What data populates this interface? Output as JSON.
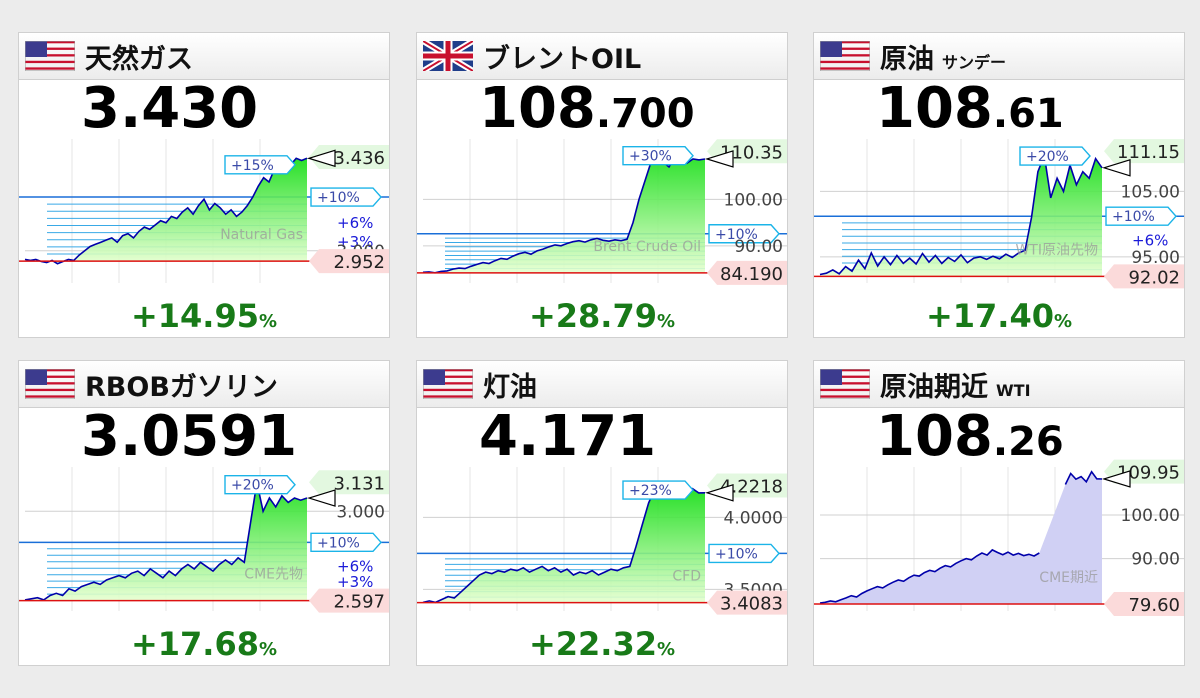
{
  "colors": {
    "rise_fill": "#22cc22",
    "price_line": "#0000aa",
    "percent_text": "#187a18",
    "level_label": "#e9f8e9",
    "low_label": "#fbdcdc"
  },
  "chart_data": [
    {
      "type": "area",
      "flag": "us",
      "title": "天然ガス",
      "subtitle": "",
      "price_int": "3.430",
      "price_dec": "",
      "change": "+14.95",
      "change_unit": "%",
      "watermark": "Natural Gas",
      "ylim": [
        2.85,
        3.52
      ],
      "high": 3.436,
      "high_label": "3.436",
      "low": 2.952,
      "low_label": "2.952",
      "axis_ticks": [
        {
          "v": 3.0,
          "label": "3.000"
        }
      ],
      "pct_marks": [
        {
          "v": 3.4,
          "label": "+15%",
          "style": "box"
        },
        {
          "v": 3.25,
          "label": "+10%",
          "style": "box"
        },
        {
          "v": 3.13,
          "label": "+6%",
          "style": "text"
        },
        {
          "v": 3.04,
          "label": "+3%",
          "style": "text"
        }
      ],
      "y": [
        2.96,
        2.955,
        2.96,
        2.95,
        2.945,
        2.955,
        2.94,
        2.95,
        2.96,
        2.955,
        2.98,
        3.0,
        3.02,
        3.03,
        3.04,
        3.05,
        3.06,
        3.04,
        3.07,
        3.08,
        3.06,
        3.09,
        3.11,
        3.1,
        3.12,
        3.14,
        3.13,
        3.16,
        3.15,
        3.18,
        3.2,
        3.17,
        3.21,
        3.24,
        3.19,
        3.22,
        3.2,
        3.17,
        3.19,
        3.16,
        3.18,
        3.21,
        3.25,
        3.3,
        3.34,
        3.32,
        3.38,
        3.36,
        3.41,
        3.4,
        3.43,
        3.42,
        3.43
      ]
    },
    {
      "type": "area",
      "flag": "uk",
      "title": "ブレントOIL",
      "subtitle": "",
      "price_int": "108",
      "price_dec": ".700",
      "change": "+28.79",
      "change_unit": "%",
      "watermark": "Brent Crude Oil",
      "ylim": [
        82,
        113
      ],
      "high": 110.35,
      "high_label": "110.35",
      "low": 84.19,
      "low_label": "84.190",
      "axis_ticks": [
        {
          "v": 100,
          "label": "100.00"
        },
        {
          "v": 90,
          "label": "90.00"
        }
      ],
      "pct_marks": [
        {
          "v": 109.4,
          "label": "+30%",
          "style": "box"
        },
        {
          "v": 92.6,
          "label": "+10%",
          "style": "box"
        }
      ],
      "y": [
        84.3,
        84.4,
        84.2,
        84.5,
        84.6,
        85.0,
        85.2,
        85.1,
        85.6,
        86.0,
        86.4,
        86.2,
        86.8,
        87.3,
        87.1,
        87.8,
        88.3,
        88.6,
        88.2,
        88.9,
        89.3,
        89.8,
        90.2,
        90.0,
        90.5,
        90.9,
        91.1,
        90.8,
        91.3,
        91.6,
        91.2,
        91.0,
        91.3,
        91.1,
        91.4,
        95,
        100,
        104,
        108,
        110.2,
        108,
        107,
        109,
        108.6,
        107.8,
        108.7,
        108.5,
        108.7
      ]
    },
    {
      "type": "area",
      "flag": "us",
      "title": "原油",
      "subtitle": "サンデー",
      "price_int": "108",
      "price_dec": ".61",
      "change": "+17.40",
      "change_unit": "%",
      "watermark": "WTI原油先物",
      "ylim": [
        91,
        113
      ],
      "high": 111.15,
      "high_label": "111.15",
      "low": 92.02,
      "low_label": "92.02",
      "axis_ticks": [
        {
          "v": 105,
          "label": "105.00"
        },
        {
          "v": 95,
          "label": "95.00"
        }
      ],
      "pct_marks": [
        {
          "v": 110.4,
          "label": "+20%",
          "style": "box"
        },
        {
          "v": 101.2,
          "label": "+10%",
          "style": "box"
        },
        {
          "v": 97.5,
          "label": "+6%",
          "style": "text"
        }
      ],
      "y": [
        92.3,
        92.5,
        93.0,
        92.4,
        93.5,
        92.8,
        94.5,
        93.2,
        95.6,
        93.6,
        95.0,
        93.8,
        95.2,
        94.0,
        94.8,
        93.9,
        95.5,
        94.2,
        95.2,
        94.0,
        94.9,
        94.3,
        95.3,
        94.1,
        94.8,
        95.0,
        94.6,
        95.1,
        94.7,
        95.4,
        94.9,
        95.6,
        96,
        101,
        108,
        110.5,
        104,
        107,
        105,
        109,
        106,
        108,
        107,
        110,
        108.6
      ]
    },
    {
      "type": "area",
      "flag": "us",
      "title": "RBOBガソリン",
      "subtitle": "",
      "price_int": "3.0591",
      "price_dec": "",
      "change": "+17.68",
      "change_unit": "%",
      "watermark": "CME先物",
      "ylim": [
        2.55,
        3.2
      ],
      "high": 3.131,
      "high_label": "3.131",
      "low": 2.597,
      "low_label": "2.597",
      "axis_ticks": [
        {
          "v": 3.0,
          "label": "3.000"
        }
      ],
      "pct_marks": [
        {
          "v": 3.12,
          "label": "+20%",
          "style": "box"
        },
        {
          "v": 2.86,
          "label": "+10%",
          "style": "box"
        },
        {
          "v": 2.75,
          "label": "+6%",
          "style": "text"
        },
        {
          "v": 2.68,
          "label": "+3%",
          "style": "text"
        }
      ],
      "y": [
        2.6,
        2.605,
        2.61,
        2.6,
        2.62,
        2.63,
        2.62,
        2.65,
        2.64,
        2.66,
        2.67,
        2.68,
        2.67,
        2.69,
        2.7,
        2.71,
        2.7,
        2.72,
        2.73,
        2.71,
        2.74,
        2.72,
        2.7,
        2.73,
        2.71,
        2.74,
        2.76,
        2.74,
        2.77,
        2.75,
        2.73,
        2.76,
        2.78,
        2.76,
        2.79,
        2.77,
        2.95,
        3.13,
        3.0,
        3.06,
        3.02,
        3.07,
        3.04,
        3.06,
        3.05,
        3.06
      ]
    },
    {
      "type": "area",
      "flag": "us",
      "title": "灯油",
      "subtitle": "",
      "price_int": "4.171",
      "price_dec": "",
      "change": "+22.32",
      "change_unit": "%",
      "watermark": "CFD",
      "ylim": [
        3.35,
        4.35
      ],
      "high": 4.2218,
      "high_label": "4.2218",
      "low": 3.4083,
      "low_label": "3.4083",
      "axis_ticks": [
        {
          "v": 4.0,
          "label": "4.0000"
        },
        {
          "v": 3.5,
          "label": "3.5000"
        }
      ],
      "pct_marks": [
        {
          "v": 4.19,
          "label": "+23%",
          "style": "box"
        },
        {
          "v": 3.75,
          "label": "+10%",
          "style": "box"
        }
      ],
      "y": [
        3.41,
        3.42,
        3.41,
        3.43,
        3.45,
        3.44,
        3.48,
        3.52,
        3.56,
        3.6,
        3.62,
        3.61,
        3.63,
        3.62,
        3.64,
        3.63,
        3.65,
        3.62,
        3.64,
        3.66,
        3.63,
        3.65,
        3.62,
        3.64,
        3.6,
        3.62,
        3.61,
        3.63,
        3.6,
        3.62,
        3.64,
        3.63,
        3.65,
        3.66,
        3.8,
        3.95,
        4.1,
        4.2,
        4.15,
        4.18,
        4.14,
        4.19,
        4.16,
        4.2,
        4.17,
        4.171
      ]
    },
    {
      "type": "area",
      "flag": "us",
      "title": "原油期近",
      "subtitle": "WTI",
      "price_int": "108",
      "price_dec": ".26",
      "change": "",
      "change_unit": "",
      "watermark": "CME期近",
      "ylim": [
        78,
        111
      ],
      "high": 109.95,
      "high_label": "109.95",
      "low": 79.6,
      "low_label": "79.60",
      "axis_ticks": [
        {
          "v": 100,
          "label": "100.00"
        },
        {
          "v": 90,
          "label": "90.00"
        }
      ],
      "pct_marks": [],
      "y": [
        79.8,
        80.0,
        80.3,
        80.1,
        80.6,
        81.0,
        81.5,
        81.2,
        82.0,
        82.6,
        83.1,
        83.6,
        83.3,
        84.0,
        84.6,
        85.1,
        84.8,
        85.6,
        86.2,
        86.0,
        86.8,
        87.3,
        87.0,
        87.8,
        88.4,
        88.1,
        88.9,
        89.5,
        90.0,
        89.7,
        90.6,
        91.3,
        90.8,
        92.0,
        91.4,
        90.9,
        91.5,
        90.8,
        91.2,
        90.7,
        91.0,
        90.6,
        91.3,
        null,
        null,
        null,
        null,
        107,
        109.5,
        108.2,
        108.8,
        107.6,
        109.9,
        108.3,
        108.26
      ],
      "fill_color": "#d0d0f4"
    }
  ]
}
